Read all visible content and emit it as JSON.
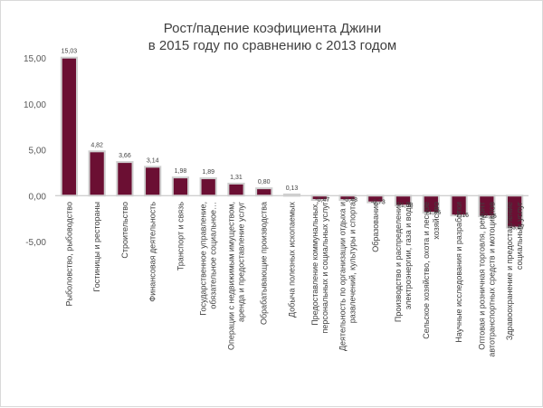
{
  "chart_data": {
    "type": "bar",
    "title": [
      "Рост/падение коэфициента Джини",
      "в 2015 году по сравнению с 2013 годом"
    ],
    "categories": [
      [
        "Рыболовство, рыбоводство"
      ],
      [
        "Гостиницы и рестораны"
      ],
      [
        "Строительство"
      ],
      [
        "Финансовая деятельность"
      ],
      [
        "Транспорт и связь"
      ],
      [
        "Государственное управление,",
        "обязательное социальное…"
      ],
      [
        "Операции с недвижимым имуществом,",
        "аренда и предоставление услуг"
      ],
      [
        "Обрабатывающие производства"
      ],
      [
        "Добыча полезных ископаемых"
      ],
      [
        "Предоставление коммунальных,",
        "персональных и социальных услуг"
      ],
      [
        "Деятельность по организации отдыха и",
        "развлечений, культуры и спорта"
      ],
      [
        "Образование"
      ],
      [
        "Производство и распределение",
        "электроэнергии, газа и воды"
      ],
      [
        "Сельское хозяйство, охота и лесное",
        "хозяйство"
      ],
      [
        "Научные исследования и разработки"
      ],
      [
        "Оптовая и розничная торговля, ремонт",
        "автотранспортных средств и мотоциклов"
      ],
      [
        "Здравоохранение и предоставление",
        "социальных услуг"
      ]
    ],
    "values": [
      15.03,
      4.82,
      3.66,
      3.14,
      1.98,
      1.89,
      1.31,
      0.8,
      0.13,
      -0.47,
      -0.48,
      -0.73,
      -1.08,
      -1.85,
      -2.16,
      -2.25,
      -3.47
    ],
    "value_labels": [
      "15,03",
      "4,82",
      "3,66",
      "3,14",
      "1,98",
      "1,89",
      "1,31",
      "0,80",
      "0,13",
      "-0,47",
      "-0,48",
      "-0,73",
      "-1,08",
      "-1,85",
      "-2,16",
      "-2,25",
      "-3,47"
    ],
    "ylim": [
      -5,
      15
    ],
    "yticks": [
      15,
      10,
      5,
      0,
      -5
    ],
    "ytick_labels": [
      "15,00",
      "10,00",
      "5,00",
      "0,00",
      "-5,00"
    ],
    "grid": false,
    "colors": {
      "bar_fill": "#6b0f33",
      "bar_fill_small": "#e2d6da",
      "bar_stroke": "#cfcfcf",
      "axis": "#bfbfbf"
    }
  }
}
